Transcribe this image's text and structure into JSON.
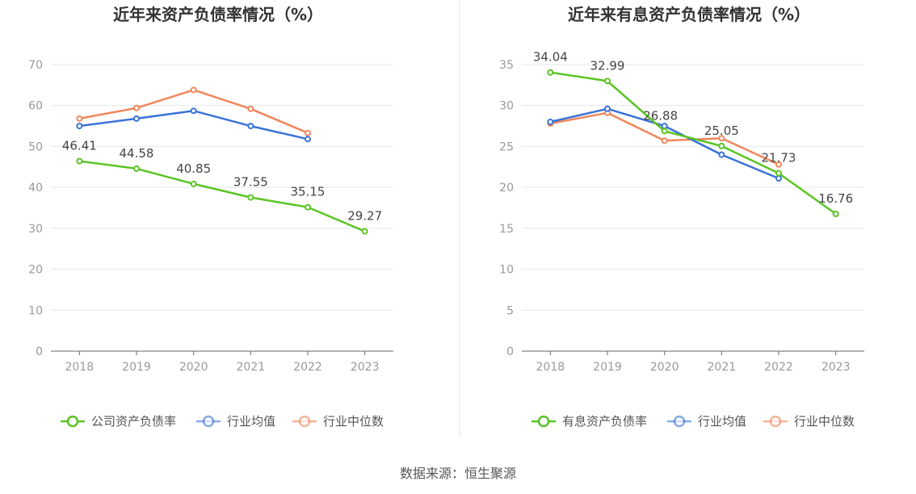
{
  "source": "数据来源：恒生聚源",
  "colors": {
    "company": "#5bc423",
    "average": "#3a73d8",
    "median": "#f0865a",
    "grid": "#e6e6ee",
    "axis": "#666666"
  },
  "chart_data": [
    {
      "type": "line",
      "title": "近年来资产负债率情况（%）",
      "x": [
        "2018",
        "2019",
        "2020",
        "2021",
        "2022",
        "2023"
      ],
      "ylim": [
        0,
        70
      ],
      "yticks": [
        0,
        10,
        20,
        30,
        40,
        50,
        60,
        70
      ],
      "grid": true,
      "legend_position": "bottom",
      "series": [
        {
          "name": "公司资产负债率",
          "values": [
            46.41,
            44.58,
            40.85,
            37.55,
            35.15,
            29.27
          ],
          "labels": [
            "46.41",
            "44.58",
            "40.85",
            "37.55",
            "35.15",
            "29.27"
          ]
        },
        {
          "name": "行业均值",
          "values": [
            55.0,
            56.8,
            58.7,
            55.0,
            51.8,
            null
          ]
        },
        {
          "name": "行业中位数",
          "values": [
            56.8,
            59.4,
            63.8,
            59.2,
            53.3,
            null
          ]
        }
      ]
    },
    {
      "type": "line",
      "title": "近年来有息资产负债率情况（%）",
      "x": [
        "2018",
        "2019",
        "2020",
        "2021",
        "2022",
        "2023"
      ],
      "ylim": [
        0,
        35
      ],
      "yticks": [
        0,
        5,
        10,
        15,
        20,
        25,
        30,
        35
      ],
      "grid": true,
      "legend_position": "bottom",
      "series": [
        {
          "name": "有息资产负债率",
          "values": [
            34.04,
            32.99,
            26.88,
            25.05,
            21.73,
            16.76
          ],
          "labels": [
            "34.04",
            "32.99",
            "26.88",
            "25.05",
            "21.73",
            "16.76"
          ]
        },
        {
          "name": "行业均值",
          "values": [
            28.0,
            29.6,
            27.5,
            24.0,
            21.1,
            null
          ]
        },
        {
          "name": "行业中位数",
          "values": [
            27.8,
            29.1,
            25.7,
            26.0,
            22.8,
            null
          ]
        }
      ]
    }
  ]
}
